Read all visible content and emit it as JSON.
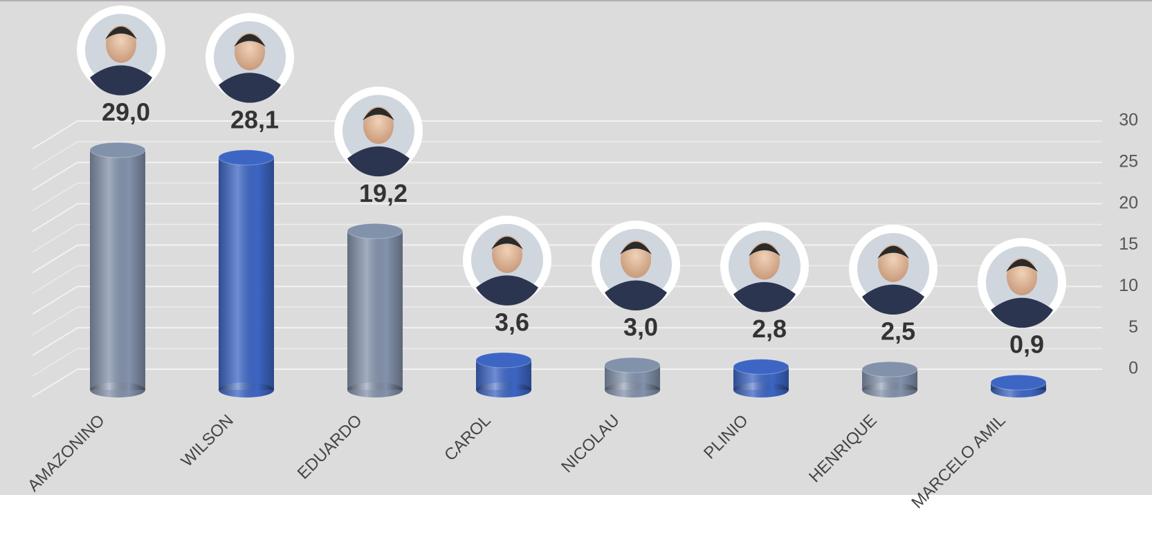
{
  "chart_data": {
    "type": "bar",
    "categories": [
      "AMAZONINO",
      "WILSON",
      "EDUARDO",
      "CAROL",
      "NICOLAU",
      "PLINIO",
      "HENRIQUE",
      "MARCELO AMIL"
    ],
    "values": [
      29.0,
      28.1,
      19.2,
      3.6,
      3.0,
      2.8,
      2.5,
      0.9
    ],
    "value_labels": [
      "29,0",
      "28,1",
      "19,2",
      "3,6",
      "3,0",
      "2,8",
      "2,5",
      "0,9"
    ],
    "colors": [
      "#8392ab",
      "#3d66c4",
      "#8392ab",
      "#3d66c4",
      "#8392ab",
      "#3d66c4",
      "#8392ab",
      "#3d66c4"
    ],
    "ylim": [
      0,
      30
    ],
    "yticks": [
      0,
      5,
      10,
      15,
      20,
      25,
      30
    ],
    "grid": true,
    "y_axis_side": "right"
  }
}
